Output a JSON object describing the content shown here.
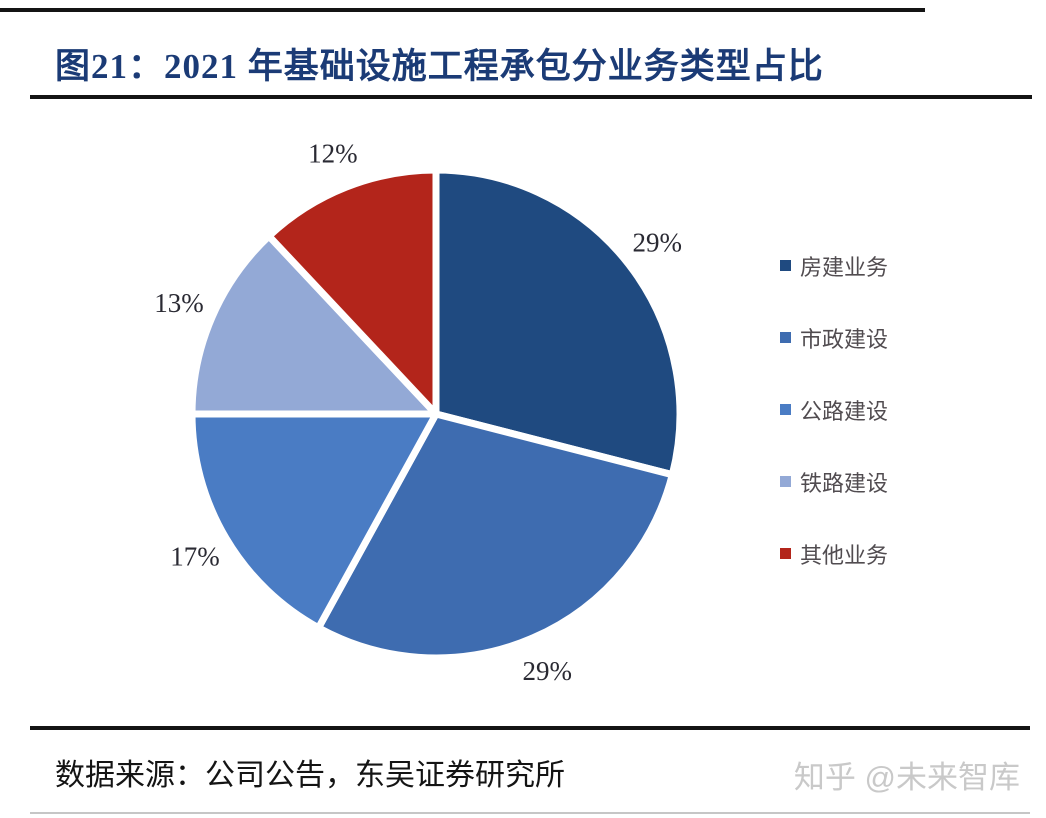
{
  "figure": {
    "title": "图21：2021 年基础设施工程承包分业务类型占比"
  },
  "chart_data": {
    "type": "pie",
    "title": "2021 年基础设施工程承包分业务类型占比",
    "categories": [
      "房建业务",
      "市政建设",
      "公路建设",
      "铁路建设",
      "其他业务"
    ],
    "values": [
      29,
      29,
      17,
      13,
      12
    ],
    "value_labels": [
      "29%",
      "29%",
      "17%",
      "13%",
      "12%"
    ],
    "colors": [
      "#1F4A80",
      "#3E6CB0",
      "#4A7CC4",
      "#93A9D6",
      "#B3251B"
    ],
    "label_position": "outside",
    "legend_position": "right",
    "start_angle_deg": 0,
    "direction": "clockwise",
    "label_color": "#2A2A33",
    "slice_gap_color": "#FFFFFF"
  },
  "footer": {
    "source": "数据来源：公司公告，东吴证券研究所",
    "watermark": "知乎 @未来智库"
  }
}
